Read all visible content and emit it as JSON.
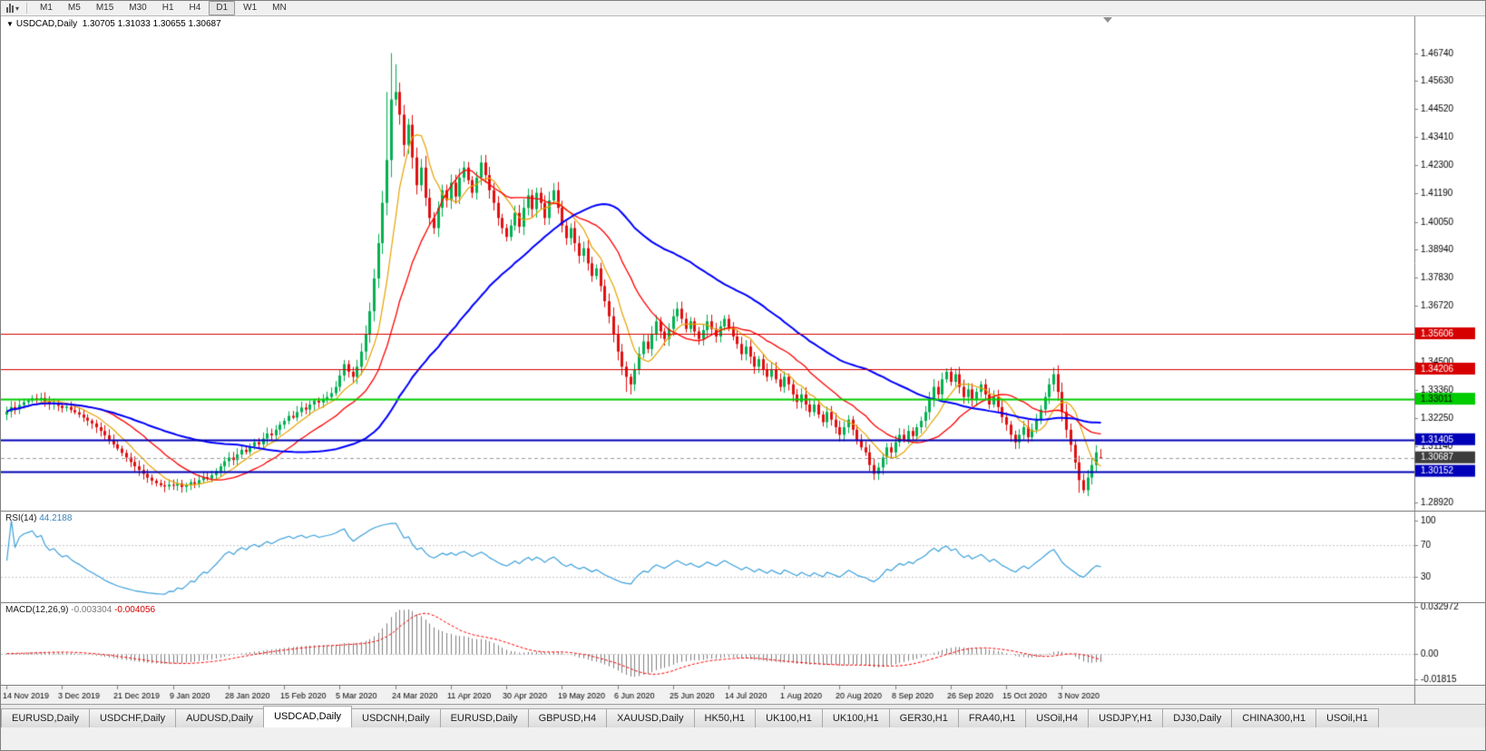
{
  "toolbar": {
    "timeframes": [
      "M1",
      "M5",
      "M15",
      "M30",
      "H1",
      "H4",
      "D1",
      "W1",
      "MN"
    ],
    "active_timeframe": "D1"
  },
  "chart_title": {
    "symbol": "USDCAD,Daily",
    "ohlc": "1.30705 1.31033 1.30655 1.30687"
  },
  "chart_data": {
    "type": "candlestick",
    "symbol": "USDCAD",
    "period": "Daily",
    "ohlc_current": {
      "open": 1.30705,
      "high": 1.31033,
      "low": 1.30655,
      "close": 1.30687
    },
    "price_range": [
      1.2859,
      1.482
    ],
    "price_axis_ticks": [
      "1.46740",
      "1.45630",
      "1.44520",
      "1.43410",
      "1.42300",
      "1.41190",
      "1.40050",
      "1.38940",
      "1.37830",
      "1.36720",
      "1.34500",
      "1.33360",
      "1.32250",
      "1.31140",
      "1.28920"
    ],
    "price_badges": [
      {
        "value": "1.35606",
        "bg": "#d60000",
        "fg": "#ffffff"
      },
      {
        "value": "1.34206",
        "bg": "#d60000",
        "fg": "#ffffff"
      },
      {
        "value": "1.33011",
        "bg": "#00cc00",
        "fg": "#000000"
      },
      {
        "value": "1.31405",
        "bg": "#0000b8",
        "fg": "#ffffff"
      },
      {
        "value": "1.30152",
        "bg": "#0000b8",
        "fg": "#ffffff"
      },
      {
        "value": "1.30687",
        "bg": "#3c3c3c",
        "fg": "#ffffff",
        "current": true
      }
    ],
    "horizontal_lines": [
      {
        "price": 1.35606,
        "color": "#d60000",
        "width": 1
      },
      {
        "price": 1.34206,
        "color": "#d60000",
        "width": 1
      },
      {
        "price": 1.33011,
        "color": "#00cc00",
        "width": 2
      },
      {
        "price": 1.31405,
        "color": "#0000b8",
        "width": 2
      },
      {
        "price": 1.30152,
        "color": "#0000b8",
        "width": 2
      }
    ],
    "current_price_line": {
      "price": 1.30687,
      "color": "#9a9a9a"
    },
    "time_axis": {
      "labels": [
        "14 Nov 2019",
        "3 Dec 2019",
        "21 Dec 2019",
        "9 Jan 2020",
        "28 Jan 2020",
        "15 Feb 2020",
        "5 Mar 2020",
        "24 Mar 2020",
        "11 Apr 2020",
        "30 Apr 2020",
        "19 May 2020",
        "6 Jun 2020",
        "25 Jun 2020",
        "14 Jul 2020",
        "1 Aug 2020",
        "20 Aug 2020",
        "8 Sep 2020",
        "26 Sep 2020",
        "15 Oct 2020",
        "3 Nov 2020"
      ],
      "bars_per_label": 13
    },
    "candles": {
      "first_open": 1.324,
      "closes": [
        1.3252,
        1.327,
        1.3261,
        1.3278,
        1.3289,
        1.3296,
        1.3305,
        1.3298,
        1.3306,
        1.3292,
        1.3281,
        1.3288,
        1.3275,
        1.3266,
        1.3271,
        1.3258,
        1.3249,
        1.324,
        1.3228,
        1.3216,
        1.3205,
        1.319,
        1.3175,
        1.3158,
        1.314,
        1.3122,
        1.3105,
        1.3088,
        1.307,
        1.3052,
        1.3035,
        1.302,
        1.3005,
        1.299,
        1.2978,
        1.2968,
        1.296,
        1.2955,
        1.2962,
        1.2958,
        1.2966,
        1.2953,
        1.2961,
        1.2972,
        1.2965,
        1.298,
        1.2992,
        1.2986,
        1.3,
        1.3015,
        1.3035,
        1.3055,
        1.307,
        1.306,
        1.3082,
        1.31,
        1.3092,
        1.3115,
        1.313,
        1.3122,
        1.3145,
        1.3165,
        1.3158,
        1.318,
        1.32,
        1.3215,
        1.3235,
        1.3228,
        1.325,
        1.3268,
        1.326,
        1.328,
        1.3295,
        1.3288,
        1.3302,
        1.331,
        1.3325,
        1.335,
        1.3395,
        1.344,
        1.341,
        1.339,
        1.343,
        1.349,
        1.356,
        1.365,
        1.378,
        1.392,
        1.408,
        1.425,
        1.449,
        1.452,
        1.443,
        1.431,
        1.439,
        1.426,
        1.415,
        1.422,
        1.41,
        1.402,
        1.398,
        1.406,
        1.413,
        1.409,
        1.416,
        1.4105,
        1.418,
        1.422,
        1.417,
        1.412,
        1.418,
        1.424,
        1.419,
        1.413,
        1.408,
        1.402,
        1.398,
        1.3945,
        1.399,
        1.404,
        1.3985,
        1.406,
        1.411,
        1.4055,
        1.412,
        1.408,
        1.402,
        1.409,
        1.413,
        1.406,
        1.399,
        1.394,
        1.398,
        1.392,
        1.387,
        1.39,
        1.384,
        1.379,
        1.382,
        1.375,
        1.369,
        1.363,
        1.356,
        1.349,
        1.343,
        1.339,
        1.336,
        1.342,
        1.348,
        1.353,
        1.35,
        1.356,
        1.361,
        1.357,
        1.354,
        1.358,
        1.363,
        1.366,
        1.362,
        1.358,
        1.361,
        1.357,
        1.354,
        1.3575,
        1.361,
        1.358,
        1.355,
        1.359,
        1.362,
        1.3585,
        1.355,
        1.352,
        1.348,
        1.351,
        1.347,
        1.343,
        1.346,
        1.342,
        1.339,
        1.342,
        1.338,
        1.335,
        1.339,
        1.336,
        1.332,
        1.329,
        1.332,
        1.328,
        1.325,
        1.328,
        1.324,
        1.321,
        1.325,
        1.322,
        1.319,
        1.316,
        1.319,
        1.322,
        1.318,
        1.314,
        1.311,
        1.309,
        1.304,
        1.3005,
        1.303,
        1.307,
        1.311,
        1.309,
        1.313,
        1.316,
        1.314,
        1.3175,
        1.3155,
        1.319,
        1.3215,
        1.325,
        1.33,
        1.335,
        1.332,
        1.338,
        1.341,
        1.337,
        1.34,
        1.335,
        1.331,
        1.334,
        1.33,
        1.333,
        1.336,
        1.332,
        1.328,
        1.331,
        1.327,
        1.323,
        1.32,
        1.316,
        1.313,
        1.316,
        1.319,
        1.315,
        1.318,
        1.322,
        1.326,
        1.331,
        1.336,
        1.34,
        1.333,
        1.325,
        1.318,
        1.312,
        1.305,
        1.298,
        1.294,
        1.299,
        1.304,
        1.309,
        1.30687
      ],
      "overrides": {
        "37": {
          "l": 1.2932
        },
        "89": {
          "h": 1.452
        },
        "90": {
          "h": 1.4674
        },
        "91": {
          "h": 1.463
        },
        "145": {
          "l": 1.333
        },
        "146": {
          "l": 1.332
        },
        "251": {
          "l": 1.293
        },
        "252": {
          "l": 1.2928
        },
        "256": {
          "o": 1.30705,
          "h": 1.31033,
          "l": 1.30655
        }
      }
    },
    "moving_averages": [
      {
        "period": 8,
        "color": "#e8a200",
        "width": 1.2
      },
      {
        "period": 20,
        "color": "#ff0000",
        "width": 1.3
      },
      {
        "period": 55,
        "color": "#0000ff",
        "width": 2
      }
    ],
    "colors": {
      "bull": "#00b050",
      "bear": "#e01010",
      "background": "#ffffff",
      "axis_line": "#7f7f7f",
      "text": "#000000"
    },
    "rsi": {
      "name": "RSI(14)",
      "value": "44.2188",
      "period": 14,
      "color": "#3ba0dc",
      "levels": [
        100,
        70,
        30
      ],
      "axis_ticks": [
        "100",
        "70",
        "30"
      ]
    },
    "macd": {
      "name": "MACD(12,26,9)",
      "value_main": "-0.003304",
      "value_signal": "-0.004056",
      "fast": 12,
      "slow": 26,
      "signal": 9,
      "axis_ticks": [
        "0.032972",
        "0.00",
        "-0.01815"
      ],
      "range": [
        -0.01815,
        0.032972
      ],
      "hist_color": "#7f7f7f",
      "signal_color": "#ff0000"
    }
  },
  "tabs": {
    "items": [
      "EURUSD,Daily",
      "USDCHF,Daily",
      "AUDUSD,Daily",
      "USDCAD,Daily",
      "USDCNH,Daily",
      "EURUSD,Daily",
      "GBPUSD,H4",
      "XAUUSD,Daily",
      "HK50,H1",
      "UK100,H1",
      "UK100,H1",
      "GER30,H1",
      "FRA40,H1",
      "USOil,H4",
      "USDJPY,H1",
      "DJ30,Daily",
      "CHINA300,H1",
      "USOil,H1"
    ],
    "active_index": 3
  }
}
